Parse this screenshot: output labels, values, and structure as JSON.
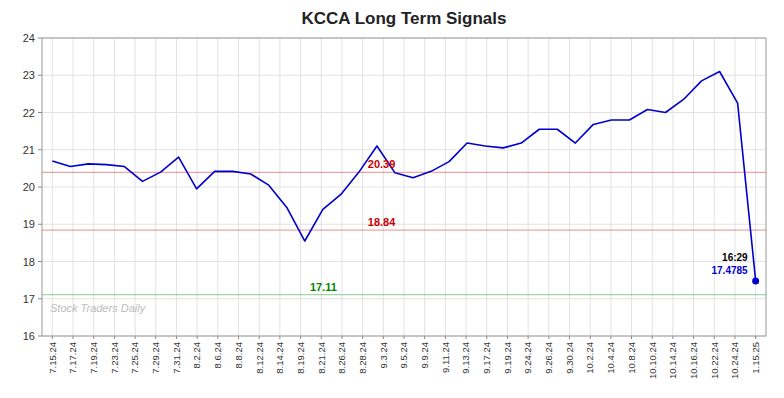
{
  "chart_data": {
    "type": "line",
    "title": "KCCA Long Term Signals",
    "x": [
      0,
      0.871794871795,
      1.74358974359,
      2.615384615385,
      3.487179487179,
      4.358974358974,
      5.230769230769,
      6.102564102564,
      6.974358974359,
      7.846153846154,
      8.717948717949,
      9.589743589744,
      10.461538461538,
      11.333333333333,
      12.205128205128,
      13.076923076923,
      13.948717948718,
      14.820512820513,
      15.692307692308,
      16.564102564103,
      17.435897435897,
      18.307692307692,
      19.179487179487,
      20.051282051282,
      20.923076923077,
      21.794871794872,
      22.666666666667,
      23.538461538462,
      24.410256410256,
      25.282051282051,
      26.153846153846,
      27.025641025641,
      27.897435897436,
      28.769230769231,
      29.641025641026,
      30.512820512821,
      31.384615384615,
      32.25641025641,
      33.128205128205,
      34
    ],
    "series": [
      {
        "color": "#0000cc",
        "values": [
          20.7,
          20.55,
          20.62,
          20.6,
          20.55,
          20.15,
          20.4,
          20.8,
          19.95,
          20.42,
          20.42,
          20.35,
          20.05,
          19.45,
          18.55,
          19.4,
          19.8,
          20.4,
          21.1,
          20.38,
          20.25,
          20.42,
          20.68,
          21.18,
          21.1,
          21.05,
          21.18,
          21.55,
          21.55,
          21.18,
          21.68,
          21.8,
          21.8,
          22.08,
          22.0,
          22.35,
          22.85,
          23.1,
          22.25,
          17.4785
        ]
      }
    ],
    "hlines": [
      {
        "value": 20.39,
        "label": "20.39",
        "color": "#cc0000"
      },
      {
        "value": 18.84,
        "label": "18.84",
        "color": "#cc0000"
      },
      {
        "value": 17.11,
        "label": "17.11",
        "color": "#008800"
      }
    ],
    "annotations": [
      {
        "text": "16:29"
      },
      {
        "text": "17.4785",
        "color": "#0000cc"
      },
      {
        "text": "Stock Traders Daily"
      }
    ],
    "xlim": [
      -0.5,
      34.5
    ],
    "xticks": [
      {
        "value": 0,
        "label": "7.15.24"
      },
      {
        "value": 1,
        "label": "7.17.24"
      },
      {
        "value": 2,
        "label": "7.19.24"
      },
      {
        "value": 3,
        "label": "7.23.24"
      },
      {
        "value": 4,
        "label": "7.25.24"
      },
      {
        "value": 5,
        "label": "7.29.24"
      },
      {
        "value": 6,
        "label": "7.31.24"
      },
      {
        "value": 7,
        "label": "8.2.24"
      },
      {
        "value": 8,
        "label": "8.6.24"
      },
      {
        "value": 9,
        "label": "8.8.24"
      },
      {
        "value": 10,
        "label": "8.12.24"
      },
      {
        "value": 11,
        "label": "8.14.24"
      },
      {
        "value": 12,
        "label": "8.19.24"
      },
      {
        "value": 13,
        "label": "8.21.24"
      },
      {
        "value": 14,
        "label": "8.26.24"
      },
      {
        "value": 15,
        "label": "8.28.24"
      },
      {
        "value": 16,
        "label": "9.3.24"
      },
      {
        "value": 17,
        "label": "9.5.24"
      },
      {
        "value": 18,
        "label": "9.9.24"
      },
      {
        "value": 19,
        "label": "9.11.24"
      },
      {
        "value": 20,
        "label": "9.13.24"
      },
      {
        "value": 21,
        "label": "9.17.24"
      },
      {
        "value": 22,
        "label": "9.19.24"
      },
      {
        "value": 23,
        "label": "9.24.24"
      },
      {
        "value": 24,
        "label": "9.26.24"
      },
      {
        "value": 25,
        "label": "9.30.24"
      },
      {
        "value": 26,
        "label": "10.2.24"
      },
      {
        "value": 27,
        "label": "10.4.24"
      },
      {
        "value": 28,
        "label": "10.8.24"
      },
      {
        "value": 29,
        "label": "10.10.24"
      },
      {
        "value": 30,
        "label": "10.14.24"
      },
      {
        "value": 31,
        "label": "10.16.24"
      },
      {
        "value": 32,
        "label": "10.22.24"
      },
      {
        "value": 33,
        "label": "10.24.24"
      },
      {
        "value": 34,
        "label": "1.15.25"
      }
    ],
    "ylim": [
      16,
      24
    ],
    "yticks": [
      16,
      17,
      18,
      19,
      20,
      21,
      22,
      23,
      24
    ],
    "grid": true
  }
}
